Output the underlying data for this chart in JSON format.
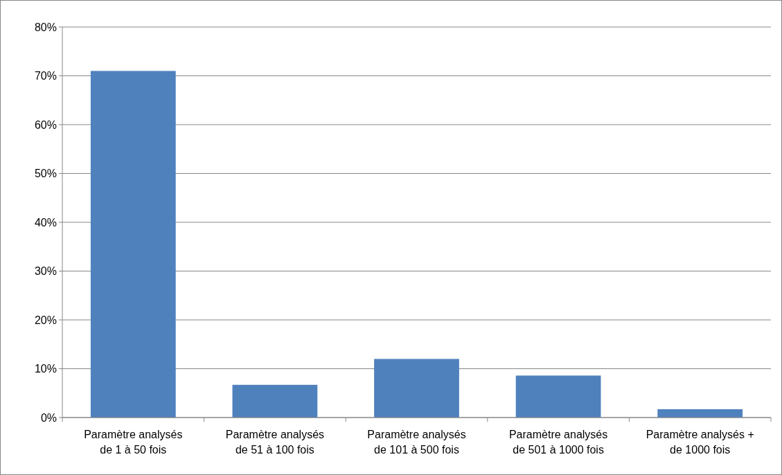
{
  "chart_data": {
    "type": "bar",
    "categories": [
      "Paramètre analysés de 1 à 50 fois",
      "Paramètre analysés de 51 à 100 fois",
      "Paramètre analysés de 101 à 500 fois",
      "Paramètre analysés de 501 à 1000 fois",
      "Paramètre analysés + de 1000 fois"
    ],
    "values": [
      71,
      6.7,
      12,
      8.6,
      1.7
    ],
    "color": "#4f81bd",
    "ylim": [
      0,
      80
    ],
    "yticks": [
      {
        "value": 0,
        "label": "0%"
      },
      {
        "value": 10,
        "label": "10%"
      },
      {
        "value": 20,
        "label": "20%"
      },
      {
        "value": 30,
        "label": "30%"
      },
      {
        "value": 40,
        "label": "40%"
      },
      {
        "value": 50,
        "label": "50%"
      },
      {
        "value": 60,
        "label": "60%"
      },
      {
        "value": 70,
        "label": "70%"
      },
      {
        "value": 80,
        "label": "80%"
      }
    ],
    "grid": "y"
  }
}
